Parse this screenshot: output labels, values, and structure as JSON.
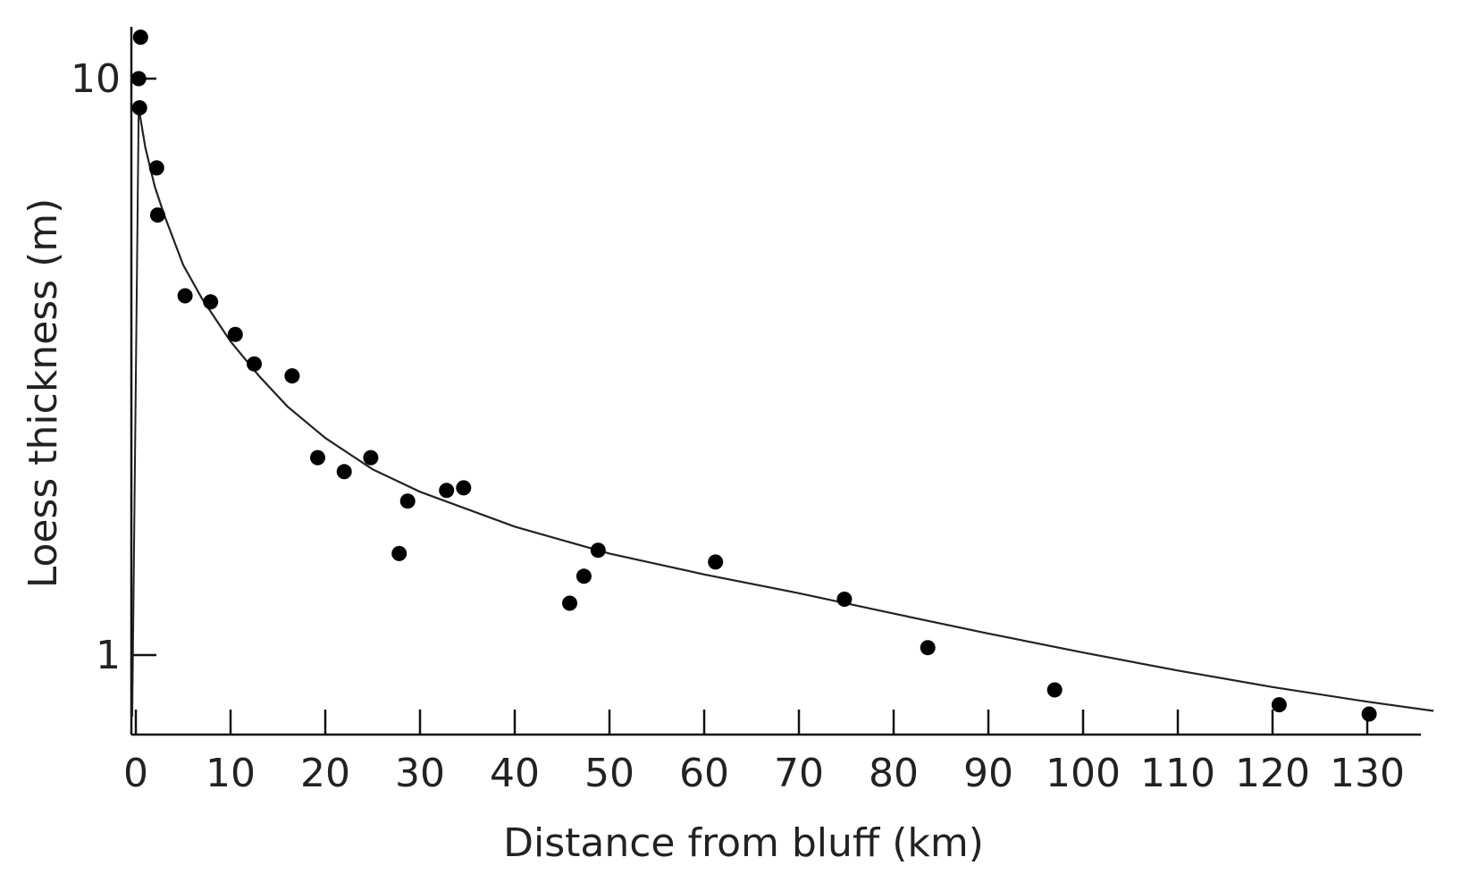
{
  "chart_data": {
    "type": "scatter",
    "xlabel": "Distance from bluff (km)",
    "ylabel": "Loess thickness (m)",
    "x_scale": "linear",
    "y_scale": "log",
    "xlim": [
      0,
      137
    ],
    "ylim": [
      0.8,
      12
    ],
    "x_ticks": [
      0,
      10,
      20,
      30,
      40,
      50,
      60,
      70,
      80,
      90,
      100,
      110,
      120,
      130
    ],
    "x_tick_labels": [
      "0",
      "10",
      "20",
      "30",
      "40",
      "50",
      "60",
      "70",
      "80",
      "90",
      "100",
      "110",
      "120",
      "130"
    ],
    "y_ticks": [
      1,
      10
    ],
    "y_tick_labels": [
      "1",
      "10"
    ],
    "grid": false,
    "points": [
      {
        "x": 0.5,
        "y": 11.8
      },
      {
        "x": 0.3,
        "y": 10.0
      },
      {
        "x": 0.4,
        "y": 8.9
      },
      {
        "x": 2.2,
        "y": 7.0
      },
      {
        "x": 2.3,
        "y": 5.8
      },
      {
        "x": 5.2,
        "y": 4.2
      },
      {
        "x": 7.9,
        "y": 4.1
      },
      {
        "x": 10.5,
        "y": 3.6
      },
      {
        "x": 12.5,
        "y": 3.2
      },
      {
        "x": 16.5,
        "y": 3.05
      },
      {
        "x": 19.2,
        "y": 2.2
      },
      {
        "x": 22.0,
        "y": 2.08
      },
      {
        "x": 24.8,
        "y": 2.2
      },
      {
        "x": 27.8,
        "y": 1.5
      },
      {
        "x": 28.7,
        "y": 1.85
      },
      {
        "x": 32.8,
        "y": 1.93
      },
      {
        "x": 34.6,
        "y": 1.95
      },
      {
        "x": 45.8,
        "y": 1.23
      },
      {
        "x": 47.3,
        "y": 1.37
      },
      {
        "x": 48.8,
        "y": 1.52
      },
      {
        "x": 61.2,
        "y": 1.45
      },
      {
        "x": 74.8,
        "y": 1.25
      },
      {
        "x": 83.6,
        "y": 1.03
      },
      {
        "x": 97.0,
        "y": 0.87
      },
      {
        "x": 120.7,
        "y": 0.82
      },
      {
        "x": 130.2,
        "y": 0.79
      }
    ],
    "fit_curve": [
      {
        "x": 0.3,
        "y": 8.9
      },
      {
        "x": 1,
        "y": 7.6
      },
      {
        "x": 2,
        "y": 6.5
      },
      {
        "x": 3,
        "y": 5.8
      },
      {
        "x": 5,
        "y": 4.75
      },
      {
        "x": 7,
        "y": 4.15
      },
      {
        "x": 10,
        "y": 3.5
      },
      {
        "x": 13,
        "y": 3.05
      },
      {
        "x": 16,
        "y": 2.7
      },
      {
        "x": 20,
        "y": 2.38
      },
      {
        "x": 25,
        "y": 2.1
      },
      {
        "x": 30,
        "y": 1.92
      },
      {
        "x": 40,
        "y": 1.67
      },
      {
        "x": 50,
        "y": 1.5
      },
      {
        "x": 60,
        "y": 1.38
      },
      {
        "x": 70,
        "y": 1.28
      },
      {
        "x": 80,
        "y": 1.18
      },
      {
        "x": 90,
        "y": 1.09
      },
      {
        "x": 100,
        "y": 1.01
      },
      {
        "x": 110,
        "y": 0.94
      },
      {
        "x": 120,
        "y": 0.88
      },
      {
        "x": 130,
        "y": 0.83
      },
      {
        "x": 137,
        "y": 0.8
      }
    ]
  }
}
